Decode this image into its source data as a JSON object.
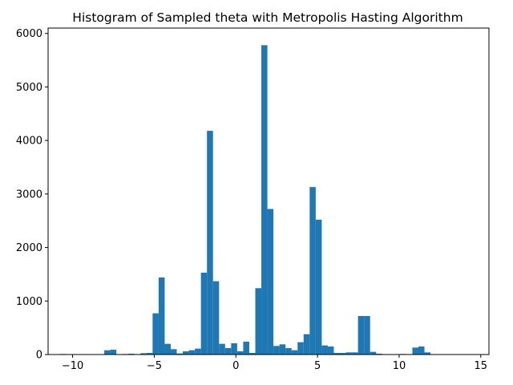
{
  "chart_data": {
    "type": "bar",
    "title": "Histogram of Sampled theta with Metropolis Hasting Algorithm",
    "xlabel": "",
    "ylabel": "",
    "xlim": [
      -11.5,
      15.5
    ],
    "ylim": [
      0,
      6100
    ],
    "x_ticks": [
      -10,
      -5,
      0,
      5,
      10,
      15
    ],
    "y_ticks": [
      0,
      1000,
      2000,
      3000,
      4000,
      5000,
      6000
    ],
    "x_tick_labels": [
      "−10",
      "−5",
      "0",
      "5",
      "10",
      "15"
    ],
    "y_tick_labels": [
      "0",
      "1000",
      "2000",
      "3000",
      "4000",
      "5000",
      "6000"
    ],
    "grid": false,
    "bar_color": "#1f77b4",
    "bins": [
      {
        "x0": -10.75,
        "x1": -10.38,
        "count": 10
      },
      {
        "x0": -8.06,
        "x1": -7.69,
        "count": 80
      },
      {
        "x0": -7.69,
        "x1": -7.32,
        "count": 90
      },
      {
        "x0": -6.95,
        "x1": -6.58,
        "count": 10
      },
      {
        "x0": -6.58,
        "x1": -6.21,
        "count": 15
      },
      {
        "x0": -5.84,
        "x1": -5.47,
        "count": 25
      },
      {
        "x0": -5.47,
        "x1": -5.1,
        "count": 30
      },
      {
        "x0": -5.1,
        "x1": -4.73,
        "count": 770
      },
      {
        "x0": -4.73,
        "x1": -4.36,
        "count": 1440
      },
      {
        "x0": -4.36,
        "x1": -3.99,
        "count": 200
      },
      {
        "x0": -3.99,
        "x1": -3.62,
        "count": 100
      },
      {
        "x0": -3.62,
        "x1": -3.25,
        "count": 20
      },
      {
        "x0": -3.25,
        "x1": -2.88,
        "count": 60
      },
      {
        "x0": -2.88,
        "x1": -2.51,
        "count": 80
      },
      {
        "x0": -2.51,
        "x1": -2.14,
        "count": 110
      },
      {
        "x0": -2.14,
        "x1": -1.77,
        "count": 1530
      },
      {
        "x0": -1.77,
        "x1": -1.4,
        "count": 4180
      },
      {
        "x0": -1.4,
        "x1": -1.03,
        "count": 1370
      },
      {
        "x0": -1.03,
        "x1": -0.66,
        "count": 200
      },
      {
        "x0": -0.66,
        "x1": -0.29,
        "count": 120
      },
      {
        "x0": -0.29,
        "x1": 0.08,
        "count": 210
      },
      {
        "x0": 0.08,
        "x1": 0.45,
        "count": 60
      },
      {
        "x0": 0.45,
        "x1": 0.82,
        "count": 240
      },
      {
        "x0": 0.82,
        "x1": 1.19,
        "count": 30
      },
      {
        "x0": 1.19,
        "x1": 1.56,
        "count": 1240
      },
      {
        "x0": 1.56,
        "x1": 1.93,
        "count": 5780
      },
      {
        "x0": 1.93,
        "x1": 2.3,
        "count": 2720
      },
      {
        "x0": 2.3,
        "x1": 2.67,
        "count": 160
      },
      {
        "x0": 2.67,
        "x1": 3.04,
        "count": 190
      },
      {
        "x0": 3.04,
        "x1": 3.41,
        "count": 120
      },
      {
        "x0": 3.41,
        "x1": 3.78,
        "count": 80
      },
      {
        "x0": 3.78,
        "x1": 4.15,
        "count": 230
      },
      {
        "x0": 4.15,
        "x1": 4.52,
        "count": 380
      },
      {
        "x0": 4.52,
        "x1": 4.89,
        "count": 3130
      },
      {
        "x0": 4.89,
        "x1": 5.26,
        "count": 2520
      },
      {
        "x0": 5.26,
        "x1": 5.63,
        "count": 170
      },
      {
        "x0": 5.63,
        "x1": 6.0,
        "count": 150
      },
      {
        "x0": 6.0,
        "x1": 6.37,
        "count": 30
      },
      {
        "x0": 6.37,
        "x1": 6.74,
        "count": 30
      },
      {
        "x0": 6.74,
        "x1": 7.11,
        "count": 40
      },
      {
        "x0": 7.11,
        "x1": 7.48,
        "count": 40
      },
      {
        "x0": 7.48,
        "x1": 7.85,
        "count": 720
      },
      {
        "x0": 7.85,
        "x1": 8.22,
        "count": 720
      },
      {
        "x0": 8.22,
        "x1": 8.59,
        "count": 50
      },
      {
        "x0": 8.59,
        "x1": 8.96,
        "count": 15
      },
      {
        "x0": 10.07,
        "x1": 10.44,
        "count": 10
      },
      {
        "x0": 10.81,
        "x1": 11.18,
        "count": 130
      },
      {
        "x0": 11.18,
        "x1": 11.55,
        "count": 150
      },
      {
        "x0": 11.55,
        "x1": 11.92,
        "count": 40
      }
    ]
  }
}
